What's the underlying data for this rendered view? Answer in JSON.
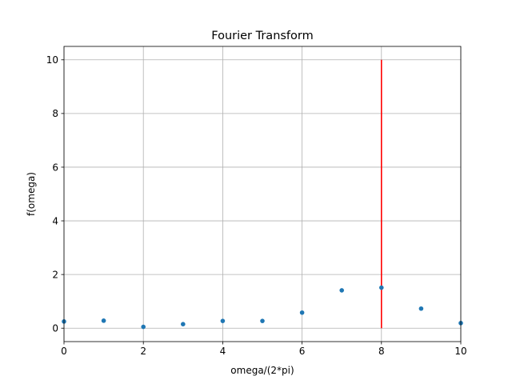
{
  "chart_data": {
    "type": "scatter",
    "title": "Fourier Transform",
    "xlabel": "omega/(2*pi)",
    "ylabel": "f(omega)",
    "xlim": [
      0,
      10
    ],
    "ylim": [
      -0.5,
      10.5
    ],
    "x_ticks": [
      0,
      2,
      4,
      6,
      8,
      10
    ],
    "y_ticks": [
      0,
      2,
      4,
      6,
      8,
      10
    ],
    "x_tick_labels": [
      "0",
      "2",
      "4",
      "6",
      "8",
      "10"
    ],
    "y_tick_labels": [
      "0",
      "2",
      "4",
      "6",
      "8",
      "10"
    ],
    "grid": true,
    "series": [
      {
        "type": "scatter",
        "color": "#1f77b4",
        "x": [
          0,
          1,
          2,
          3,
          4,
          5,
          6,
          7,
          8,
          9,
          10
        ],
        "y": [
          0.25,
          0.28,
          0.05,
          0.15,
          0.27,
          0.27,
          0.58,
          1.41,
          1.51,
          0.73,
          0.19
        ]
      }
    ],
    "vlines": [
      {
        "x": 8,
        "ymin": 0,
        "ymax": 10,
        "color": "#ff0000"
      }
    ]
  }
}
